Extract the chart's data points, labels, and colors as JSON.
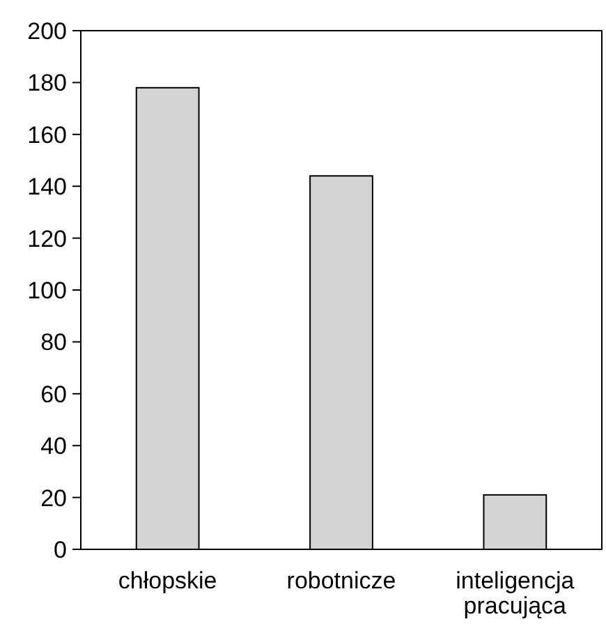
{
  "chart_data": {
    "type": "bar",
    "categories": [
      "chłopskie",
      "robotnicze",
      "inteligencja pracująca"
    ],
    "values": [
      178,
      144,
      21
    ],
    "color": "#d3d3d3",
    "ylim": [
      0,
      200
    ],
    "yticks": [
      0,
      20,
      40,
      60,
      80,
      100,
      120,
      140,
      160,
      180,
      200
    ]
  }
}
